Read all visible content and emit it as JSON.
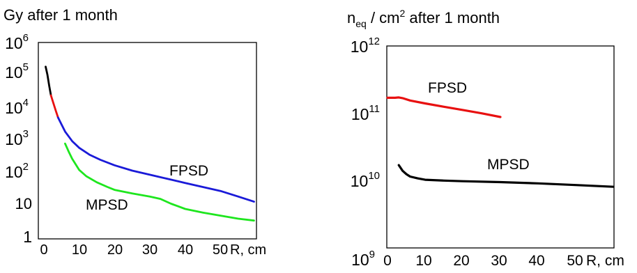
{
  "chart_data": [
    {
      "type": "line",
      "title": "Gy after 1 month",
      "xlabel": "R, cm",
      "yscale": "log",
      "xlim": [
        0,
        60
      ],
      "ylim": [
        1,
        1000000
      ],
      "x_ticks": [
        "0",
        "10",
        "20",
        "30",
        "40",
        "50"
      ],
      "y_ticks": [
        {
          "base": "10",
          "exp": "6"
        },
        {
          "base": "10",
          "exp": "5"
        },
        {
          "base": "10",
          "exp": "4"
        },
        {
          "base": "10",
          "exp": "3"
        },
        {
          "base": "10",
          "exp": "2"
        },
        {
          "base": "10",
          "exp": ""
        },
        {
          "base": "1",
          "exp": ""
        }
      ],
      "annotations": [
        "FPSD",
        "MPSD"
      ],
      "series": [
        {
          "name": "FPSD",
          "color": "#000000",
          "x": [
            0.5,
            1,
            1.5,
            2
          ],
          "y": [
            200000,
            110000,
            50000,
            25000
          ]
        },
        {
          "name": "FPSD",
          "color": "#e81010",
          "x": [
            2,
            2.7,
            3.4,
            4
          ],
          "y": [
            25000,
            14000,
            8000,
            5000
          ]
        },
        {
          "name": "FPSD",
          "color": "#1a1ad8",
          "x": [
            4,
            5,
            6,
            8,
            10,
            13,
            16,
            20,
            25,
            30,
            35,
            40,
            45,
            50,
            55,
            59.5
          ],
          "y": [
            5000,
            3000,
            1800,
            900,
            550,
            330,
            230,
            155,
            105,
            78,
            58,
            43,
            32,
            24,
            16,
            11
          ]
        },
        {
          "name": "MPSD",
          "color": "#1ee61e",
          "x": [
            6,
            7,
            8,
            10,
            12,
            15,
            18,
            20,
            25,
            30,
            33,
            36,
            40,
            45,
            50,
            55,
            59.5
          ],
          "y": [
            750,
            420,
            250,
            110,
            70,
            45,
            32,
            26,
            20,
            16,
            13.5,
            9.5,
            6.5,
            5,
            4,
            3.2,
            2.8
          ]
        }
      ]
    },
    {
      "type": "line",
      "title": {
        "base": "n",
        "sub": "eq",
        "mid": " / cm",
        "sup": "2",
        "tail": " after 1 month"
      },
      "xlabel": "R, cm",
      "yscale": "log",
      "xlim": [
        0,
        60
      ],
      "ylim": [
        1000000000,
        1000000000000
      ],
      "x_ticks": [
        "0",
        "10",
        "20",
        "30",
        "40",
        "50"
      ],
      "y_ticks": [
        {
          "base": "10",
          "exp": "12"
        },
        {
          "base": "10",
          "exp": "11"
        },
        {
          "base": "10",
          "exp": "10"
        },
        {
          "base": "10",
          "exp": "9"
        }
      ],
      "annotations": [
        "FPSD",
        "MPSD"
      ],
      "series": [
        {
          "name": "FPSD",
          "color": "#e81010",
          "x": [
            0,
            2,
            3,
            4,
            6,
            10,
            15,
            20,
            25,
            30
          ],
          "y": [
            170000000000,
            170000000000,
            172000000000,
            168000000000,
            155000000000,
            140000000000,
            125000000000,
            112000000000,
            100000000000,
            88000000000
          ]
        },
        {
          "name": "MPSD",
          "color": "#000000",
          "x": [
            3,
            4,
            5,
            6,
            8,
            10,
            15,
            20,
            30,
            40,
            50,
            60
          ],
          "y": [
            17000000000,
            14000000000,
            12500000000,
            11500000000,
            10800000000,
            10300000000,
            10000000000,
            9800000000,
            9500000000,
            9100000000,
            8600000000,
            8100000000
          ]
        }
      ]
    }
  ]
}
